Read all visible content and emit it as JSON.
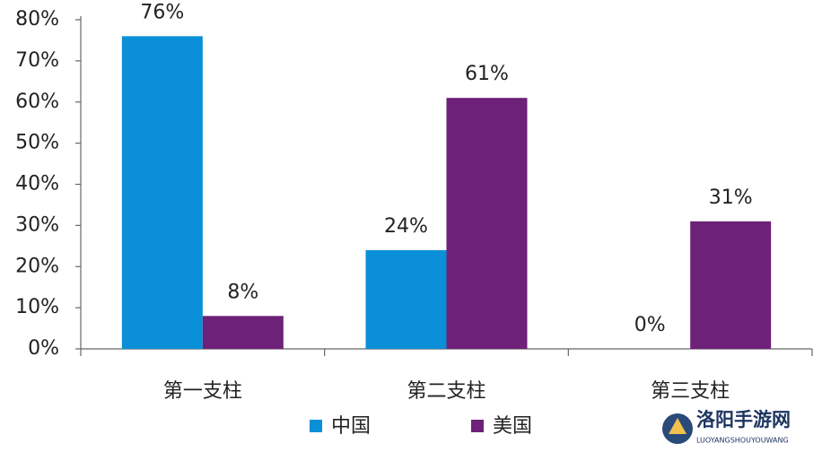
{
  "chart_data": {
    "type": "bar",
    "categories": [
      "第一支柱",
      "第二支柱",
      "第三支柱"
    ],
    "series": [
      {
        "name": "中国",
        "color": "#0a8fd8",
        "values": [
          76,
          24,
          0
        ],
        "value_labels": [
          "76%",
          "24%",
          "0%"
        ]
      },
      {
        "name": "美国",
        "color": "#6e2178",
        "values": [
          8,
          61,
          31
        ],
        "value_labels": [
          "8%",
          "61%",
          "31%"
        ]
      }
    ],
    "ylim": [
      0,
      80
    ],
    "yticks": [
      {
        "value": 0,
        "label": "0%"
      },
      {
        "value": 10,
        "label": "10%"
      },
      {
        "value": 20,
        "label": "20%"
      },
      {
        "value": 30,
        "label": "30%"
      },
      {
        "value": 40,
        "label": "40%"
      },
      {
        "value": 50,
        "label": "50%"
      },
      {
        "value": 60,
        "label": "60%"
      },
      {
        "value": 70,
        "label": "70%"
      },
      {
        "value": 80,
        "label": "80%"
      }
    ],
    "grid": false,
    "legend": "bottom"
  },
  "watermark": {
    "title": "洛阳手游网",
    "subtitle": "LUOYANGSHOUYOUWANG"
  }
}
